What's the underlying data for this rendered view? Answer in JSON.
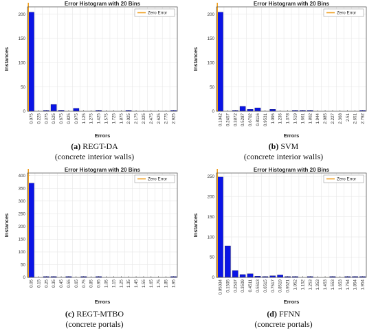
{
  "colors": {
    "bar": "#0a14e6",
    "zero_line": "#f0a020",
    "grid": "#e6e6e6",
    "axis": "#444444"
  },
  "chart_data": [
    {
      "type": "bar",
      "title": "Error Histogram with 20 Bins",
      "xlabel": "Errors",
      "ylabel": "Instances",
      "legend": "Zero Error",
      "legend_position": "top-right",
      "grid": true,
      "ylim": [
        0,
        215
      ],
      "yticks": [
        0,
        50,
        100,
        150,
        200
      ],
      "zero_bin_index": 0,
      "categories": [
        "0.075",
        "0.225",
        "0.375",
        "0.525",
        "0.675",
        "0.825",
        "0.975",
        "1.125",
        "1.275",
        "1.425",
        "1.575",
        "1.725",
        "1.875",
        "2.025",
        "2.175",
        "2.325",
        "2.475",
        "2.625",
        "2.775",
        "2.925"
      ],
      "values": [
        204,
        0,
        1,
        14,
        2,
        0,
        6,
        0,
        0,
        1,
        0,
        0,
        0,
        1,
        0,
        0,
        0,
        0,
        0,
        1
      ],
      "caption_letter": "(a)",
      "caption_name": "REGT-DA",
      "caption_sub": "(concrete interior walls)"
    },
    {
      "type": "bar",
      "title": "Error Histogram with 20 Bins",
      "xlabel": "Errors",
      "ylabel": "Instances",
      "legend": "Zero Error",
      "legend_position": "top-right",
      "grid": true,
      "ylim": [
        0,
        215
      ],
      "yticks": [
        0,
        50,
        100,
        150,
        200
      ],
      "zero_bin_index": 0,
      "categories": [
        "0.1042",
        "0.2457",
        "0.3872",
        "0.5287",
        "0.6702",
        "0.8116",
        "0.9531",
        "1.095",
        "1.236",
        "1.378",
        "1.519",
        "1.661",
        "1.802",
        "1.944",
        "2.085",
        "2.227",
        "2.368",
        "2.51",
        "2.651",
        "2.792"
      ],
      "values": [
        204,
        0,
        1,
        10,
        4,
        7,
        0,
        4,
        0,
        0,
        1,
        1,
        1,
        0,
        0,
        0,
        0,
        0,
        0,
        1
      ],
      "caption_letter": "(b)",
      "caption_name": "SVM",
      "caption_sub": "(concrete interior walls)"
    },
    {
      "type": "bar",
      "title": "Error Histogram with 20 Bins",
      "xlabel": "Errors",
      "ylabel": "Instances",
      "legend": "Zero Error",
      "legend_position": "top-right",
      "grid": true,
      "ylim": [
        0,
        410
      ],
      "yticks": [
        0,
        50,
        100,
        150,
        200,
        250,
        300,
        350,
        400
      ],
      "zero_bin_index": 0,
      "categories": [
        "0.05",
        "0.15",
        "0.25",
        "0.35",
        "0.45",
        "0.55",
        "0.65",
        "0.75",
        "0.85",
        "0.95",
        "1.05",
        "1.15",
        "1.25",
        "1.35",
        "1.45",
        "1.55",
        "1.65",
        "1.75",
        "1.85",
        "1.95"
      ],
      "values": [
        370,
        0,
        2,
        1,
        0,
        1,
        0,
        1,
        0,
        1,
        0,
        0,
        0,
        0,
        0,
        0,
        0,
        0,
        0,
        1
      ],
      "caption_letter": "(c)",
      "caption_name": "REGT-MTBO",
      "caption_sub": "(concrete portals)"
    },
    {
      "type": "bar",
      "title": "Error Histogram with 20 Bins",
      "xlabel": "Errors",
      "ylabel": "Instances",
      "legend": "Zero Error",
      "legend_position": "top-right",
      "grid": true,
      "ylim": [
        0,
        258
      ],
      "yticks": [
        0,
        50,
        100,
        150,
        200,
        250
      ],
      "zero_bin_index": 0,
      "categories": [
        "0.05034",
        "0.1505",
        "0.2507",
        "0.3509",
        "0.4511",
        "0.5513",
        "0.6515",
        "0.7517",
        "0.8519",
        "0.9521",
        "1.052",
        "1.152",
        "1.253",
        "1.353",
        "1.453",
        "1.553",
        "1.653",
        "1.754",
        "1.854",
        "1.954"
      ],
      "values": [
        248,
        78,
        17,
        7,
        9,
        3,
        2,
        4,
        6,
        2,
        1,
        0,
        1,
        0,
        0,
        1,
        0,
        1,
        1,
        1
      ],
      "caption_letter": "(d)",
      "caption_name": "FFNN",
      "caption_sub": "(concrete portals)"
    }
  ]
}
